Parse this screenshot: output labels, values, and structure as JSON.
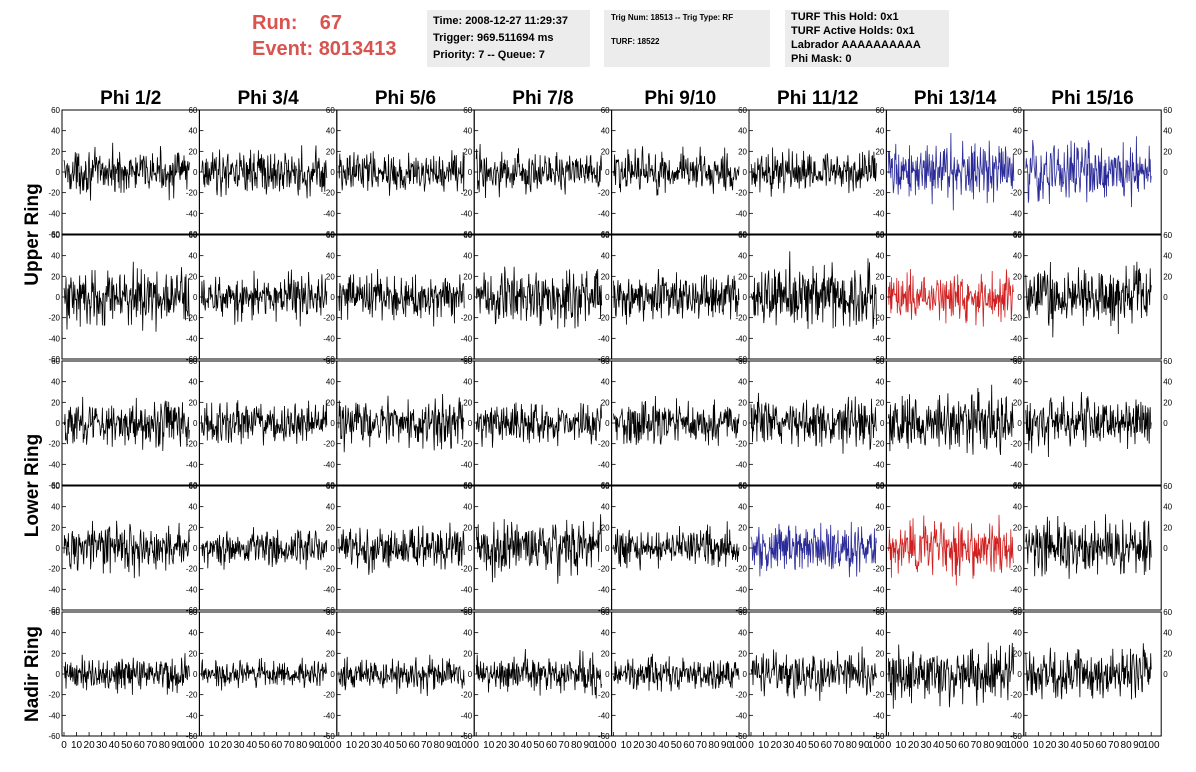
{
  "header": {
    "run_label": "Run:",
    "run_value": "67",
    "event_label": "Event:",
    "event_value": "8013413",
    "time_line": "Time: 2008-12-27 11:29:37",
    "trigger_line": "Trigger: 969.511694 ms",
    "priority_line": "Priority: 7 -- Queue: 7",
    "trig_line": "Trig Num: 18513 -- Trig Type: RF",
    "turf_line": "TURF: 18522",
    "turf_hold_line": "TURF This Hold: 0x1",
    "turf_active_line": "TURF Active Holds: 0x1",
    "labrador_line": "Labrador AAAAAAAAAA",
    "phi_mask_line": "Phi Mask: 0"
  },
  "colors": {
    "header_red": "#d9534f",
    "trace_black": "#000000",
    "trace_blue": "#2b2b99",
    "trace_red": "#d02020",
    "box_gray": "#ececec"
  },
  "chart_data": {
    "type": "line",
    "columns": [
      "Phi 1/2",
      "Phi 3/4",
      "Phi 5/6",
      "Phi 7/8",
      "Phi 9/10",
      "Phi 11/12",
      "Phi 13/14",
      "Phi 15/16"
    ],
    "rings": [
      "Upper Ring",
      "Lower Ring",
      "Nadir Ring"
    ],
    "rows_per_ring": [
      2,
      2,
      1
    ],
    "xlim": [
      0,
      100
    ],
    "ylim": [
      -60,
      60
    ],
    "x_ticks": [
      "0",
      "10",
      "20",
      "30",
      "40",
      "50",
      "60",
      "70",
      "80",
      "90",
      "100"
    ],
    "y_ticks": [
      "60",
      "40",
      "20",
      "0",
      "-20",
      "-40",
      "-60"
    ],
    "samples": 256,
    "highlight_panels": [
      {
        "row": 0,
        "col": 6,
        "color": "blue"
      },
      {
        "row": 0,
        "col": 7,
        "color": "blue"
      },
      {
        "row": 1,
        "col": 6,
        "color": "red"
      },
      {
        "row": 3,
        "col": 5,
        "color": "blue"
      },
      {
        "row": 3,
        "col": 6,
        "color": "red"
      }
    ],
    "amplitudes": [
      [
        14,
        15,
        14,
        14,
        15,
        14,
        20,
        20
      ],
      [
        20,
        15,
        16,
        19,
        16,
        22,
        16,
        20
      ],
      [
        16,
        14,
        16,
        13,
        15,
        17,
        20,
        18
      ],
      [
        16,
        13,
        15,
        19,
        13,
        16,
        18,
        18
      ],
      [
        13,
        9,
        11,
        13,
        11,
        15,
        20,
        17
      ]
    ]
  }
}
